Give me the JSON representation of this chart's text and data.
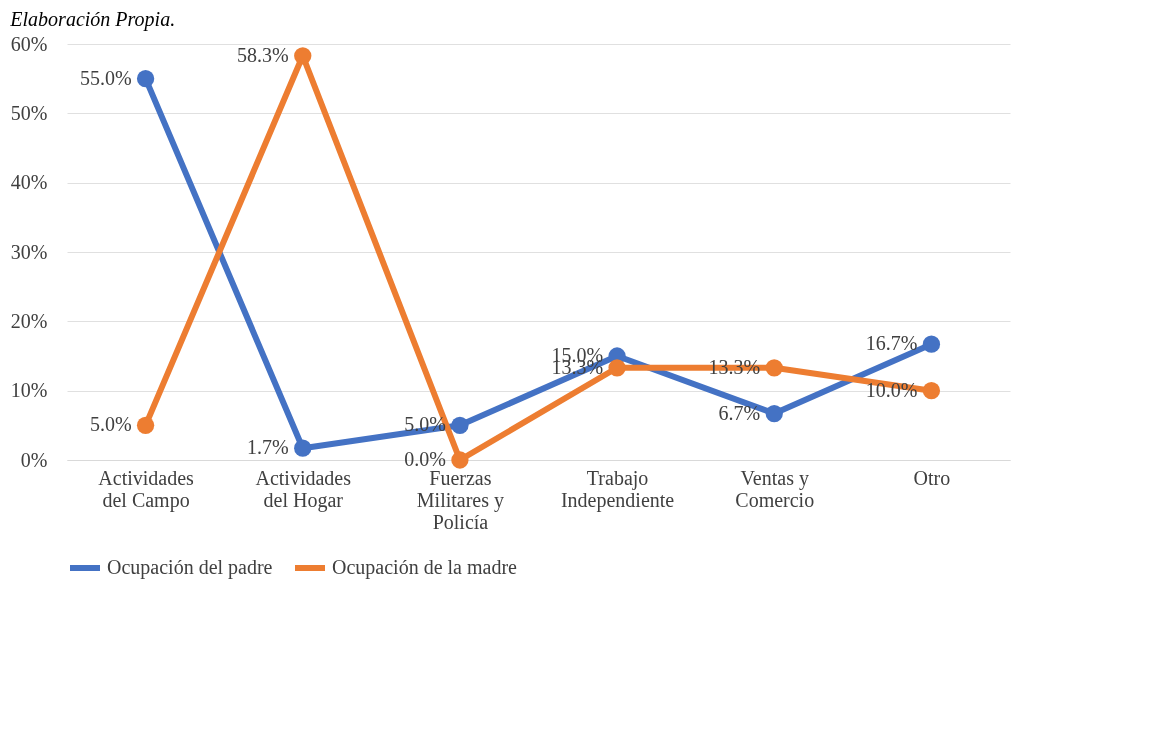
{
  "chart_data": {
    "type": "line",
    "annotations": [
      "Elaboración Propia."
    ],
    "categories": [
      "Actividades\ndel Campo",
      "Actividades\ndel Hogar",
      "Fuerzas\nMilitares y\nPolicía",
      "Trabajo\nIndependiente",
      "Ventas y\nComercio",
      "Otro"
    ],
    "series": [
      {
        "name": "Ocupación del padre",
        "color": "#4472c4",
        "values": [
          55.0,
          1.7,
          5.0,
          15.0,
          6.7,
          16.7
        ],
        "value_labels": [
          "55.0%",
          "1.7%",
          "5.0%",
          "15.0%",
          "6.7%",
          "16.7%"
        ]
      },
      {
        "name": "Ocupación de la madre",
        "color": "#ed7d31",
        "values": [
          5.0,
          58.3,
          0.0,
          13.3,
          13.3,
          10.0
        ],
        "value_labels": [
          "5.0%",
          "58.3%",
          "0.0%",
          "13.3%",
          "13.3%",
          "10.0%"
        ]
      }
    ],
    "ylim": [
      0,
      60
    ],
    "yticks": [
      {
        "value": 0,
        "label": "0%"
      },
      {
        "value": 10,
        "label": "10%"
      },
      {
        "value": 20,
        "label": "20%"
      },
      {
        "value": 30,
        "label": "30%"
      },
      {
        "value": 40,
        "label": "40%"
      },
      {
        "value": 50,
        "label": "50%"
      },
      {
        "value": 60,
        "label": "60%"
      }
    ],
    "grid": "y",
    "legend": "bottom",
    "marker": "circle",
    "line_style": "solid"
  }
}
